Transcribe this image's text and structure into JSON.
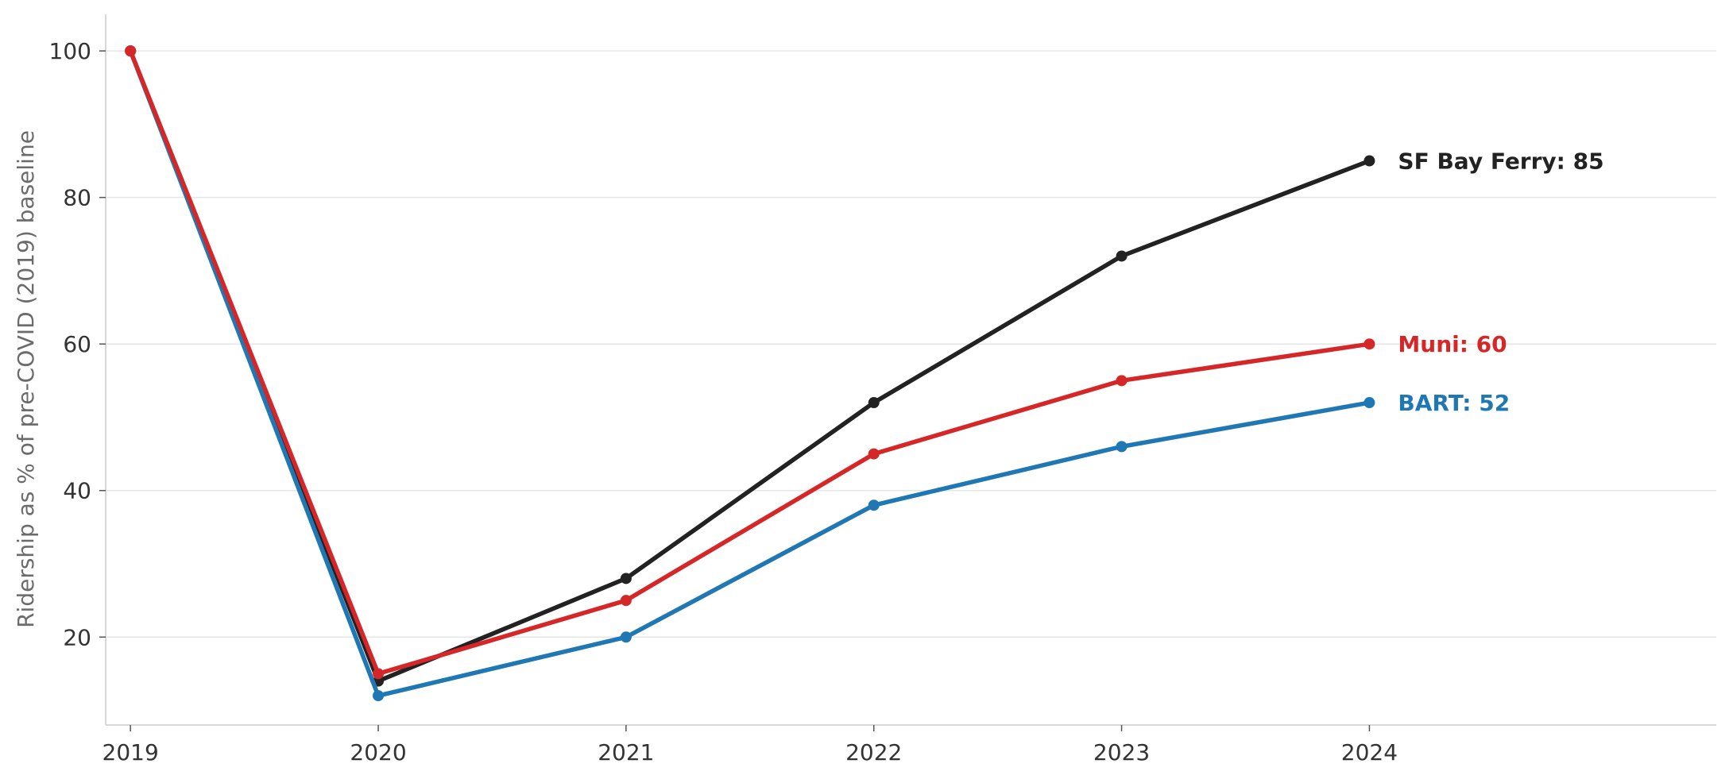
{
  "chart_data": {
    "type": "line",
    "title": "",
    "xlabel": "",
    "ylabel": "Ridership as % of pre-COVID (2019) baseline",
    "x": [
      2019,
      2020,
      2021,
      2022,
      2023,
      2024
    ],
    "x_tick_labels": [
      "2019",
      "2020",
      "2021",
      "2022",
      "2023",
      "2024"
    ],
    "xlim": [
      2018.9,
      2025.4
    ],
    "ylim": [
      8,
      105
    ],
    "y_ticks": [
      20,
      40,
      60,
      80,
      100
    ],
    "y_tick_labels": [
      "20",
      "40",
      "60",
      "80",
      "100"
    ],
    "grid": "horizontal",
    "legend": "none (direct end labels)",
    "series": [
      {
        "name": "SF Bay Ferry",
        "color": "#222222",
        "values": [
          100,
          14,
          28,
          52,
          72,
          85
        ],
        "end_label": "SF Bay Ferry: 85"
      },
      {
        "name": "BART",
        "color": "#1f77b4",
        "values": [
          100,
          12,
          20,
          38,
          46,
          52
        ],
        "end_label": "BART: 52"
      },
      {
        "name": "Muni",
        "color": "#d62728",
        "values": [
          100,
          15,
          25,
          45,
          55,
          60
        ],
        "end_label": "Muni: 60"
      }
    ]
  }
}
